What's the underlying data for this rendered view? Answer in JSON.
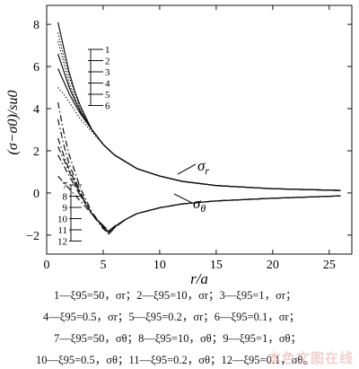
{
  "chart_data": {
    "type": "line",
    "xlabel": "r/a",
    "ylabel": "(σ−σ0)/su0",
    "xlim": [
      0,
      27
    ],
    "ylim": [
      -2.9,
      8.9
    ],
    "xticks": [
      0,
      5,
      10,
      15,
      20,
      25
    ],
    "yticks": [
      -2,
      0,
      2,
      4,
      6,
      8
    ],
    "grid": false,
    "curve_labels": {
      "sigma_r": "σr",
      "sigma_theta": "σθ"
    },
    "legend_sigma_r": [
      "1",
      "2",
      "3",
      "4",
      "5",
      "6"
    ],
    "legend_sigma_theta": [
      "7",
      "8",
      "9",
      "10",
      "11",
      "12"
    ],
    "series": [
      {
        "key": "1",
        "stress": "sigma_r",
        "style": "solid",
        "x": [
          1.0,
          1.5,
          2.0,
          2.5,
          3.0,
          4.0,
          5.0,
          6.0,
          8.0,
          10.0,
          12.0,
          15.0,
          20.0,
          26.0
        ],
        "y": [
          8.1,
          6.9,
          5.7,
          4.8,
          4.1,
          3.0,
          2.3,
          1.8,
          1.15,
          0.8,
          0.55,
          0.35,
          0.2,
          0.12
        ]
      },
      {
        "key": "2",
        "stress": "sigma_r",
        "style": "solid",
        "x": [
          1.0,
          1.5,
          2.0,
          2.5,
          3.0,
          4.0,
          5.0,
          6.0,
          8.0,
          10.0,
          12.0,
          15.0,
          20.0,
          26.0
        ],
        "y": [
          5.9,
          5.3,
          4.7,
          4.2,
          3.75,
          3.0,
          2.3,
          1.8,
          1.15,
          0.8,
          0.55,
          0.35,
          0.2,
          0.12
        ]
      },
      {
        "key": "3",
        "stress": "sigma_r",
        "style": "dotted",
        "x": [
          1.0,
          1.5,
          2.0,
          2.5,
          3.0,
          4.0,
          5.0,
          6.0,
          8.0,
          10.0,
          12.0,
          15.0,
          20.0,
          26.0
        ],
        "y": [
          7.2,
          6.2,
          5.2,
          4.5,
          3.9,
          3.0,
          2.3,
          1.8,
          1.15,
          0.8,
          0.55,
          0.35,
          0.2,
          0.12
        ]
      },
      {
        "key": "4",
        "stress": "sigma_r",
        "style": "dotted",
        "x": [
          1.0,
          1.5,
          2.0,
          2.5,
          3.0,
          4.0,
          5.0,
          6.0,
          8.0,
          10.0,
          12.0,
          15.0,
          20.0,
          26.0
        ],
        "y": [
          5.0,
          4.7,
          4.3,
          3.9,
          3.5,
          2.9,
          2.3,
          1.8,
          1.15,
          0.8,
          0.55,
          0.35,
          0.2,
          0.12
        ]
      },
      {
        "key": "5",
        "stress": "sigma_r",
        "style": "dotted",
        "x": [
          1.0,
          1.5,
          2.0,
          2.5,
          3.0,
          4.0,
          5.0,
          6.0,
          8.0,
          10.0,
          12.0,
          15.0,
          20.0,
          26.0
        ],
        "y": [
          7.6,
          6.5,
          5.5,
          4.7,
          4.0,
          3.0,
          2.3,
          1.8,
          1.15,
          0.8,
          0.55,
          0.35,
          0.2,
          0.12
        ]
      },
      {
        "key": "6",
        "stress": "sigma_r",
        "style": "solid",
        "x": [
          1.0,
          1.5,
          2.0,
          2.5,
          3.0,
          4.0,
          5.0,
          6.0,
          8.0,
          10.0,
          12.0,
          15.0,
          20.0,
          26.0
        ],
        "y": [
          6.6,
          5.8,
          5.0,
          4.4,
          3.85,
          3.0,
          2.3,
          1.8,
          1.15,
          0.8,
          0.55,
          0.35,
          0.2,
          0.12
        ]
      },
      {
        "key": "7",
        "stress": "sigma_theta",
        "style": "dashdot",
        "x": [
          1.0,
          1.5,
          2.0,
          3.0,
          4.0,
          5.0,
          5.5,
          6.0,
          7.0,
          8.0,
          10.0,
          12.0,
          15.0,
          20.0,
          26.0
        ],
        "y": [
          4.3,
          2.9,
          1.8,
          0.2,
          -0.9,
          -1.65,
          -1.95,
          -1.65,
          -1.25,
          -0.98,
          -0.7,
          -0.52,
          -0.38,
          -0.25,
          -0.14
        ]
      },
      {
        "key": "8",
        "stress": "sigma_theta",
        "style": "dashdot",
        "x": [
          1.0,
          1.5,
          2.0,
          3.0,
          4.0,
          5.0,
          5.5,
          6.0,
          7.0,
          8.0,
          10.0,
          12.0,
          15.0,
          20.0,
          26.0
        ],
        "y": [
          3.5,
          2.3,
          1.35,
          0.0,
          -1.0,
          -1.7,
          -1.95,
          -1.65,
          -1.25,
          -0.98,
          -0.7,
          -0.52,
          -0.38,
          -0.25,
          -0.14
        ]
      },
      {
        "key": "9",
        "stress": "sigma_theta",
        "style": "dashdot",
        "x": [
          1.0,
          1.5,
          2.0,
          3.0,
          4.0,
          5.0,
          5.5,
          6.0,
          7.0,
          8.0,
          10.0,
          12.0,
          15.0,
          20.0,
          26.0
        ],
        "y": [
          2.6,
          1.8,
          1.1,
          -0.05,
          -1.0,
          -1.6,
          -1.85,
          -1.6,
          -1.25,
          -0.98,
          -0.7,
          -0.52,
          -0.38,
          -0.25,
          -0.14
        ]
      },
      {
        "key": "10",
        "stress": "sigma_theta",
        "style": "dashdot",
        "x": [
          1.0,
          1.5,
          2.0,
          3.0,
          4.0,
          5.0,
          5.5,
          6.0,
          7.0,
          8.0,
          10.0,
          12.0,
          15.0,
          20.0,
          26.0
        ],
        "y": [
          1.8,
          1.3,
          0.8,
          -0.15,
          -1.0,
          -1.55,
          -1.8,
          -1.58,
          -1.25,
          -0.98,
          -0.7,
          -0.52,
          -0.38,
          -0.25,
          -0.14
        ]
      },
      {
        "key": "11",
        "stress": "sigma_theta",
        "style": "dashdot",
        "x": [
          1.0,
          1.5,
          2.0,
          3.0,
          4.0,
          5.0,
          5.5,
          6.0,
          7.0,
          8.0,
          10.0,
          12.0,
          15.0,
          20.0,
          26.0
        ],
        "y": [
          0.8,
          0.5,
          0.2,
          -0.4,
          -1.0,
          -1.55,
          -1.8,
          -1.58,
          -1.25,
          -0.98,
          -0.7,
          -0.52,
          -0.38,
          -0.25,
          -0.14
        ]
      },
      {
        "key": "12",
        "stress": "sigma_theta",
        "style": "dashdot",
        "x": [
          1.0,
          1.5,
          2.0,
          3.0,
          4.0,
          5.0,
          5.5,
          6.0,
          7.0,
          8.0,
          10.0,
          12.0,
          15.0,
          20.0,
          26.0
        ],
        "y": [
          2.2,
          1.6,
          1.0,
          -0.1,
          -1.0,
          -1.6,
          -1.9,
          -1.62,
          -1.25,
          -0.98,
          -0.7,
          -0.52,
          -0.38,
          -0.25,
          -0.14
        ]
      }
    ]
  },
  "caption": {
    "line1": "1—ξ95=50，σr；2—ξ95=10，σr；3—ξ95=1，σr；",
    "line2": "4—ξ95=0.5，σr；5—ξ95=0.2，σr；6—ξ95=0.1，σr；",
    "line3": "7—ξ95=50，σθ；8—ξ95=10，σθ；9—ξ95=1，σθ；",
    "line4": "10—ξ95=0.5，σθ；11—ξ95=0.2，σθ；12—ξ95=0.1，σθ。"
  },
  "watermark": "本色文图在线"
}
